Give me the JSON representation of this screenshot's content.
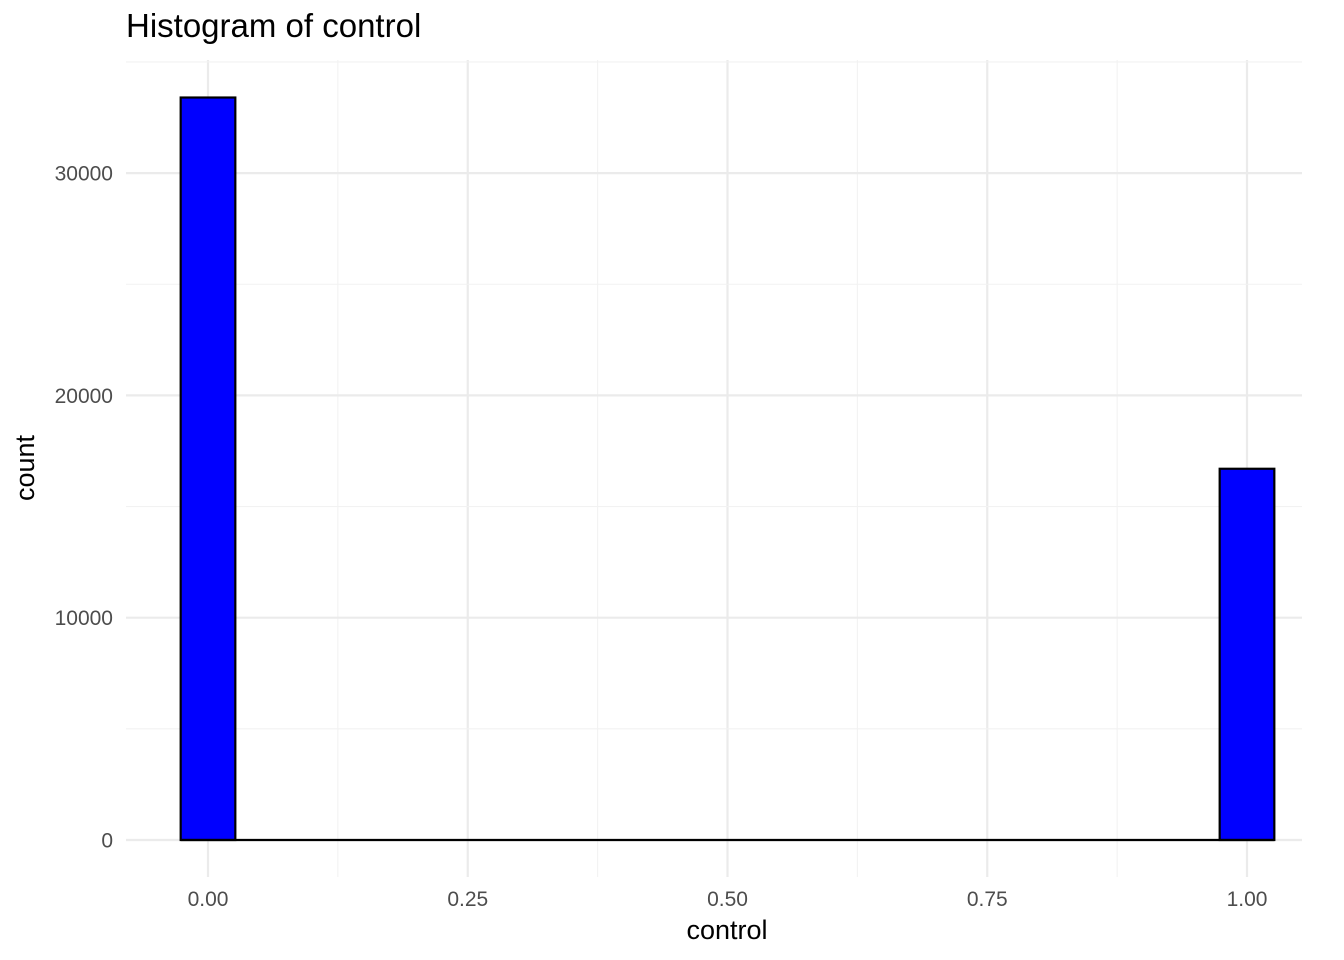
{
  "chart_data": {
    "type": "bar",
    "title": "Histogram of control",
    "xlabel": "control",
    "ylabel": "count",
    "xlim": [
      -0.0625,
      1.0625
    ],
    "ylim": [
      0,
      35000
    ],
    "x_ticks": [
      0.0,
      0.25,
      0.5,
      0.75,
      1.0
    ],
    "x_tick_labels": [
      "0.00",
      "0.25",
      "0.50",
      "0.75",
      "1.00"
    ],
    "y_ticks": [
      0,
      10000,
      20000,
      30000
    ],
    "y_tick_labels": [
      "0",
      "10000",
      "20000",
      "30000"
    ],
    "bin_width": 0.0526,
    "bins": [
      {
        "x": 0.0,
        "count": 33400
      },
      {
        "x": 1.0,
        "count": 16700
      }
    ],
    "grid": true,
    "colors": {
      "bar_fill": "#0000ff",
      "bar_outline": "#000000"
    }
  }
}
